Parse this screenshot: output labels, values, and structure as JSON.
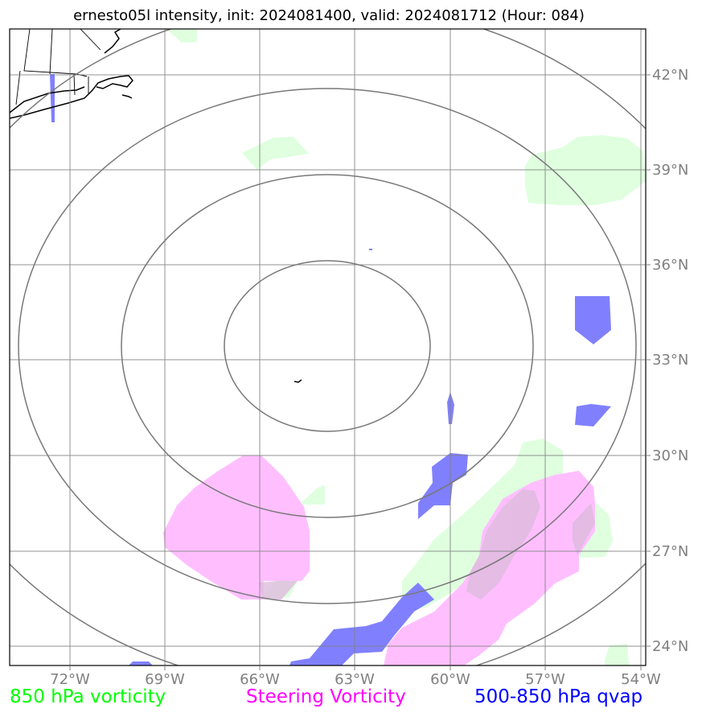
{
  "title": "ernesto05l intensity, init: 2024081400, valid: 2024081712 (Hour: 084)",
  "map": {
    "lat_labels": [
      "42°N",
      "39°N",
      "36°N",
      "33°N",
      "30°N",
      "27°N",
      "24°N"
    ],
    "lon_labels": [
      "72°W",
      "69°W",
      "66°W",
      "63°W",
      "60°W",
      "57°W",
      "54°W"
    ],
    "range_rings": 4,
    "colors": {
      "vorticity_850": "#dfffdf",
      "steering_vorticity": "#ffbfff",
      "qvap": "#8080ff",
      "grid": "#808080",
      "rings": "#787878"
    }
  },
  "legend": {
    "vorticity": {
      "label": "850 hPa vorticity",
      "color": "#00ff00"
    },
    "steering": {
      "label": "Steering Vorticity",
      "color": "#ff00ff"
    },
    "qvap": {
      "label": "500-850 hPa qvap",
      "color": "#0000ff"
    }
  }
}
